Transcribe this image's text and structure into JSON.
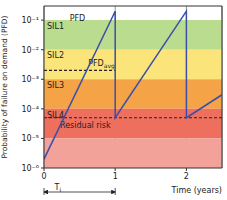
{
  "chart_data": {
    "type": "line",
    "x_label": "Time (years)",
    "y_label": "Probability of failure on demand (PFD)",
    "log": "y",
    "grid": true,
    "xlim": [
      0,
      2.5
    ],
    "xticks": [
      0,
      1,
      2
    ],
    "ylim": [
      1e-06,
      0.3
    ],
    "yticks": [
      {
        "value": 0.1,
        "label": "10⁻¹"
      },
      {
        "value": 0.01,
        "label": "10⁻²"
      },
      {
        "value": 0.001,
        "label": "10⁻³"
      },
      {
        "value": 0.0001,
        "label": "10⁻⁴"
      },
      {
        "value": 1e-05,
        "label": "10⁻⁵"
      },
      {
        "value": 1e-06,
        "label": "10⁻⁶"
      }
    ],
    "x": [
      0,
      1,
      1,
      2,
      2,
      2.5
    ],
    "series": [
      {
        "name": "PFD",
        "color": "#3b4fa8",
        "values": [
          2e-06,
          0.2,
          5e-05,
          0.2,
          5e-05,
          0.0003
        ]
      }
    ],
    "pfd_avg": {
      "text": "PFD",
      "subscript": "avg",
      "value": 0.002,
      "x": [
        0,
        1
      ]
    },
    "residual_risk": {
      "text": "Residual risk",
      "value": 5e-05
    },
    "bands": [
      {
        "name": "SIL1",
        "from": 0.01,
        "to": 0.1,
        "color": "#b9dc8e"
      },
      {
        "name": "SIL2",
        "from": 0.001,
        "to": 0.01,
        "color": "#fbe57a"
      },
      {
        "name": "SIL3",
        "from": 0.0001,
        "to": 0.001,
        "color": "#f5a347"
      },
      {
        "name": "SIL4",
        "from": 1e-05,
        "to": 0.0001,
        "color": "#ef6f5e"
      },
      {
        "from": 1e-06,
        "to": 1e-05,
        "color": "#f3a29a"
      }
    ],
    "interval": {
      "text": "T",
      "subscript": "i",
      "x": [
        0,
        1
      ]
    }
  }
}
